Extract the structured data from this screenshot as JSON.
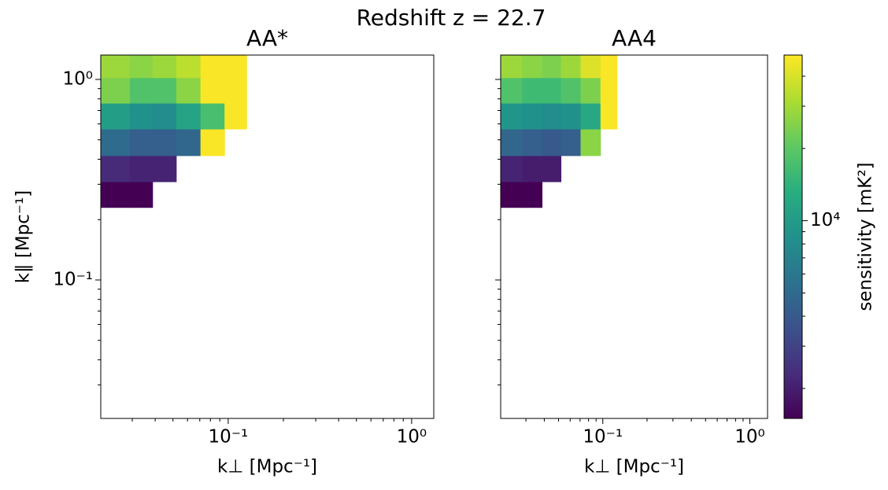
{
  "title": "Redshift z = 22.7",
  "chart_data": [
    {
      "type": "heatmap",
      "title": "AA*",
      "colormap": "viridis",
      "log_x": true,
      "log_y": true,
      "xlabel": "k⊥ [Mpc⁻¹]",
      "ylabel": "k∥ [Mpc⁻¹]",
      "x_edges": [
        0.0202,
        0.0291,
        0.0387,
        0.0521,
        0.0706,
        0.0955,
        0.126
      ],
      "y_edges": [
        0.23,
        0.309,
        0.417,
        0.566,
        0.762,
        1.02,
        1.32
      ],
      "values": [
        [
          1500,
          1500,
          null,
          null,
          null,
          null
        ],
        [
          2280,
          2120,
          2120,
          null,
          null,
          null
        ],
        [
          5070,
          4260,
          4260,
          4730,
          48000,
          null
        ],
        [
          10200,
          8550,
          7980,
          11300,
          17200,
          48000
        ],
        [
          24300,
          18400,
          18400,
          26100,
          48000,
          48000
        ],
        [
          28900,
          26100,
          28900,
          34400,
          48000,
          48000
        ]
      ],
      "xlim": [
        0.0202,
        1.32
      ],
      "ylim": [
        0.0204,
        1.323
      ],
      "xticks": [
        {
          "value": 0.1,
          "label": "10⁻¹"
        },
        {
          "value": 1,
          "label": "10⁰"
        }
      ],
      "yticks": [
        {
          "value": 0.1,
          "label": "10⁻¹"
        },
        {
          "value": 1,
          "label": "10⁰"
        }
      ],
      "xminorticks": [
        0.03,
        0.04,
        0.05,
        0.06,
        0.07,
        0.08,
        0.09,
        0.2,
        0.3,
        0.4,
        0.5,
        0.6,
        0.7,
        0.8,
        0.9
      ],
      "yminorticks": [
        0.03,
        0.04,
        0.05,
        0.06,
        0.07,
        0.08,
        0.09,
        0.2,
        0.3,
        0.4,
        0.5,
        0.6,
        0.7,
        0.8,
        0.9
      ]
    },
    {
      "type": "heatmap",
      "title": "AA4",
      "colormap": "viridis",
      "log_x": true,
      "log_y": true,
      "xlabel": "k⊥ [Mpc⁻¹]",
      "show_ytick_labels": false,
      "x_edges": [
        0.0202,
        0.0283,
        0.0386,
        0.0519,
        0.0706,
        0.0964,
        0.125
      ],
      "y_edges": [
        0.23,
        0.309,
        0.417,
        0.566,
        0.762,
        1.02,
        1.32
      ],
      "values": [
        [
          1500,
          1500,
          null,
          null,
          null,
          null
        ],
        [
          2120,
          1980,
          1980,
          null,
          null,
          null
        ],
        [
          4730,
          4260,
          3970,
          4260,
          26100,
          null
        ],
        [
          9170,
          8550,
          7980,
          8550,
          12100,
          48000
        ],
        [
          18400,
          16000,
          16000,
          18400,
          24300,
          48000
        ],
        [
          28900,
          26100,
          24300,
          28900,
          40900,
          48000
        ]
      ],
      "xlim": [
        0.0202,
        1.32
      ],
      "ylim": [
        0.0204,
        1.323
      ],
      "xticks": [
        {
          "value": 0.1,
          "label": "10⁻¹"
        },
        {
          "value": 1,
          "label": "10⁰"
        }
      ],
      "yticks": [
        0.1,
        1
      ],
      "xminorticks": [
        0.03,
        0.04,
        0.05,
        0.06,
        0.07,
        0.08,
        0.09,
        0.2,
        0.3,
        0.4,
        0.5,
        0.6,
        0.7,
        0.8,
        0.9
      ],
      "yminorticks": [
        0.03,
        0.04,
        0.05,
        0.06,
        0.07,
        0.08,
        0.09,
        0.2,
        0.3,
        0.4,
        0.5,
        0.6,
        0.7,
        0.8,
        0.9
      ]
    }
  ],
  "colorbar": {
    "label": "sensitivity [mK²]",
    "log": true,
    "lim": [
      1500,
      49000
    ],
    "ticks": [
      {
        "value": 10000,
        "label": "10⁴"
      }
    ],
    "minorticks": [
      2000,
      3000,
      4000,
      5000,
      6000,
      7000,
      8000,
      9000,
      20000,
      30000,
      40000
    ]
  }
}
